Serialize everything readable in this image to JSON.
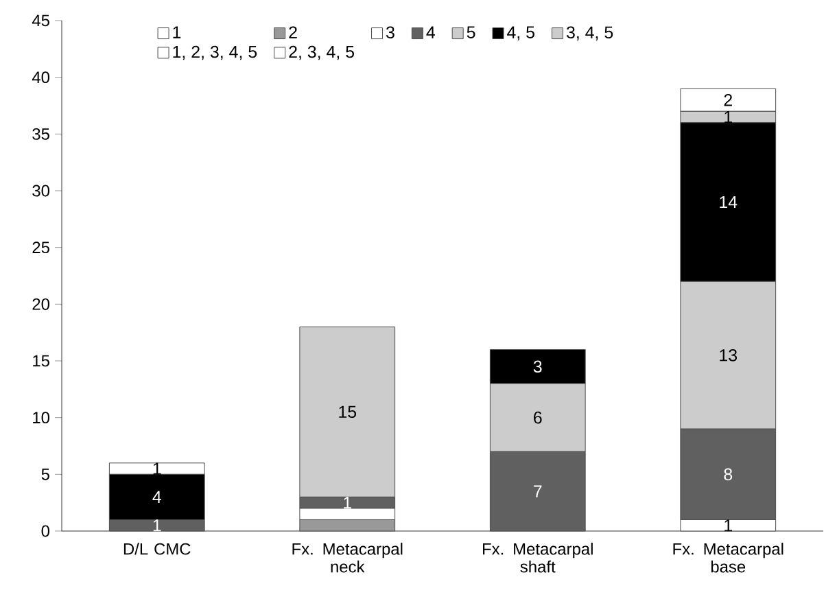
{
  "chart_data": {
    "type": "bar",
    "stacked": true,
    "categories": [
      "D/L CMC",
      "Fx. Metacarpal neck",
      "Fx. Metacarpal shaft",
      "Fx. Metacarpal base"
    ],
    "series": [
      {
        "name": "1",
        "color": "#ffffff",
        "values": [
          0,
          0,
          0,
          1
        ],
        "value_labels": [
          null,
          null,
          null,
          "1"
        ]
      },
      {
        "name": "2",
        "color": "#999999",
        "values": [
          0,
          1,
          0,
          0
        ],
        "value_labels": [
          null,
          null,
          null,
          null
        ]
      },
      {
        "name": "3",
        "color": "#ffffff",
        "values": [
          0,
          1,
          0,
          0
        ],
        "value_labels": [
          null,
          null,
          null,
          null
        ]
      },
      {
        "name": "4",
        "color": "#606060",
        "values": [
          1,
          1,
          7,
          8
        ],
        "value_labels": [
          "1",
          "1",
          "7",
          "8"
        ]
      },
      {
        "name": "5",
        "color": "#cccccc",
        "values": [
          0,
          15,
          6,
          13
        ],
        "value_labels": [
          null,
          "15",
          "6",
          "13"
        ]
      },
      {
        "name": "4, 5",
        "color": "#000000",
        "values": [
          4,
          0,
          3,
          14
        ],
        "value_labels": [
          "4",
          null,
          "3",
          "14"
        ]
      },
      {
        "name": "3, 4, 5",
        "color": "#cccccc",
        "values": [
          0,
          0,
          0,
          1
        ],
        "value_labels": [
          null,
          null,
          null,
          "1"
        ]
      },
      {
        "name": "1, 2, 3, 4, 5",
        "color": "#ffffff",
        "values": [
          1,
          0,
          0,
          0
        ],
        "value_labels": [
          "1",
          null,
          null,
          null
        ]
      },
      {
        "name": "2, 3, 4, 5",
        "color": "#ffffff",
        "values": [
          0,
          0,
          0,
          2
        ],
        "value_labels": [
          null,
          null,
          null,
          "2"
        ]
      }
    ],
    "ylim": [
      0,
      45
    ],
    "yticks": [
      0,
      5,
      10,
      15,
      20,
      25,
      30,
      35,
      40,
      45
    ],
    "grid": false,
    "legend": "top"
  }
}
